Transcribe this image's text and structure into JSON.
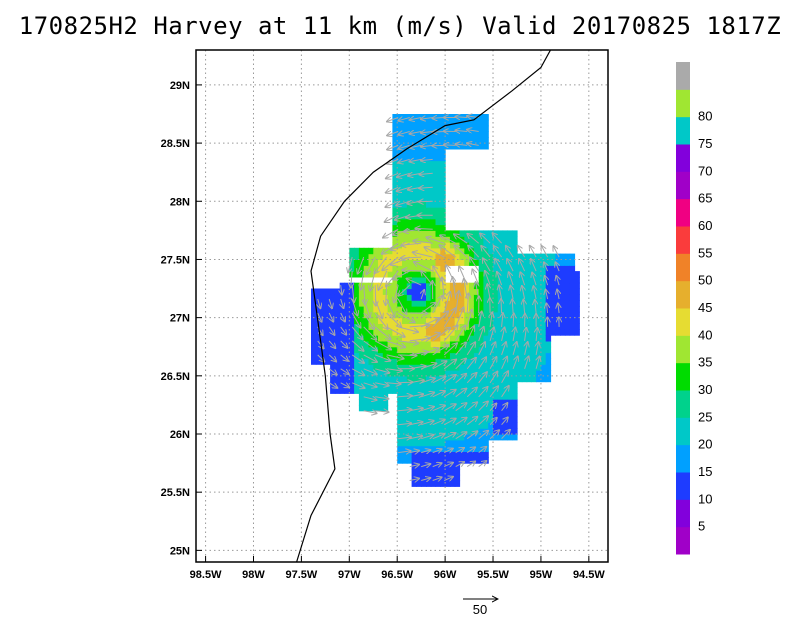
{
  "title": "170825H2 Harvey at 11 km (m/s) Valid 20170825 1817Z",
  "map": {
    "lon_min": -98.6,
    "lon_max": -94.3,
    "lat_min": 24.9,
    "lat_max": 29.3,
    "x_ticks": [
      {
        "value": -98.5,
        "label": "98.5W"
      },
      {
        "value": -98,
        "label": "98W"
      },
      {
        "value": -97.5,
        "label": "97.5W"
      },
      {
        "value": -97,
        "label": "97W"
      },
      {
        "value": -96.5,
        "label": "96.5W"
      },
      {
        "value": -96,
        "label": "96W"
      },
      {
        "value": -95.5,
        "label": "95.5W"
      },
      {
        "value": -95,
        "label": "95W"
      },
      {
        "value": -94.5,
        "label": "94.5W"
      }
    ],
    "y_ticks": [
      {
        "value": 25,
        "label": "25N"
      },
      {
        "value": 25.5,
        "label": "25.5N"
      },
      {
        "value": 26,
        "label": "26N"
      },
      {
        "value": 26.5,
        "label": "26.5N"
      },
      {
        "value": 27,
        "label": "27N"
      },
      {
        "value": 27.5,
        "label": "27.5N"
      },
      {
        "value": 28,
        "label": "28N"
      },
      {
        "value": 28.5,
        "label": "28.5N"
      },
      {
        "value": 29,
        "label": "29N"
      }
    ],
    "grid": true,
    "center": {
      "lon": -96.32,
      "lat": 27.2
    },
    "coastline": [
      [
        -97.55,
        24.9
      ],
      [
        -97.4,
        25.3
      ],
      [
        -97.15,
        25.7
      ],
      [
        -97.2,
        26.0
      ],
      [
        -97.25,
        26.5
      ],
      [
        -97.3,
        26.8
      ],
      [
        -97.35,
        27.1
      ],
      [
        -97.4,
        27.4
      ],
      [
        -97.3,
        27.7
      ],
      [
        -97.05,
        28.0
      ],
      [
        -96.75,
        28.25
      ],
      [
        -96.4,
        28.45
      ],
      [
        -96.0,
        28.65
      ],
      [
        -95.7,
        28.7
      ],
      [
        -95.3,
        28.95
      ],
      [
        -95.0,
        29.15
      ],
      [
        -94.9,
        29.3
      ]
    ]
  },
  "colorbar": {
    "levels": [
      0,
      5,
      10,
      15,
      20,
      25,
      30,
      35,
      40,
      45,
      50,
      55,
      60,
      65,
      70,
      75,
      80,
      85
    ],
    "colors": [
      "#a000c8",
      "#8200dc",
      "#1e3cff",
      "#00a0ff",
      "#00c8c8",
      "#00d28c",
      "#00dc00",
      "#a0e632",
      "#e6dc32",
      "#e6af2d",
      "#f08228",
      "#fa3c3c",
      "#f00082",
      "#a000c8",
      "#8200dc",
      "#00c8c8",
      "#a0e632",
      "#aaaaaa"
    ],
    "labels": [
      "5",
      "10",
      "15",
      "20",
      "25",
      "30",
      "35",
      "40",
      "45",
      "50",
      "55",
      "60",
      "65",
      "70",
      "75",
      "80"
    ]
  },
  "reference_vector": {
    "label": "50",
    "value": 50
  }
}
